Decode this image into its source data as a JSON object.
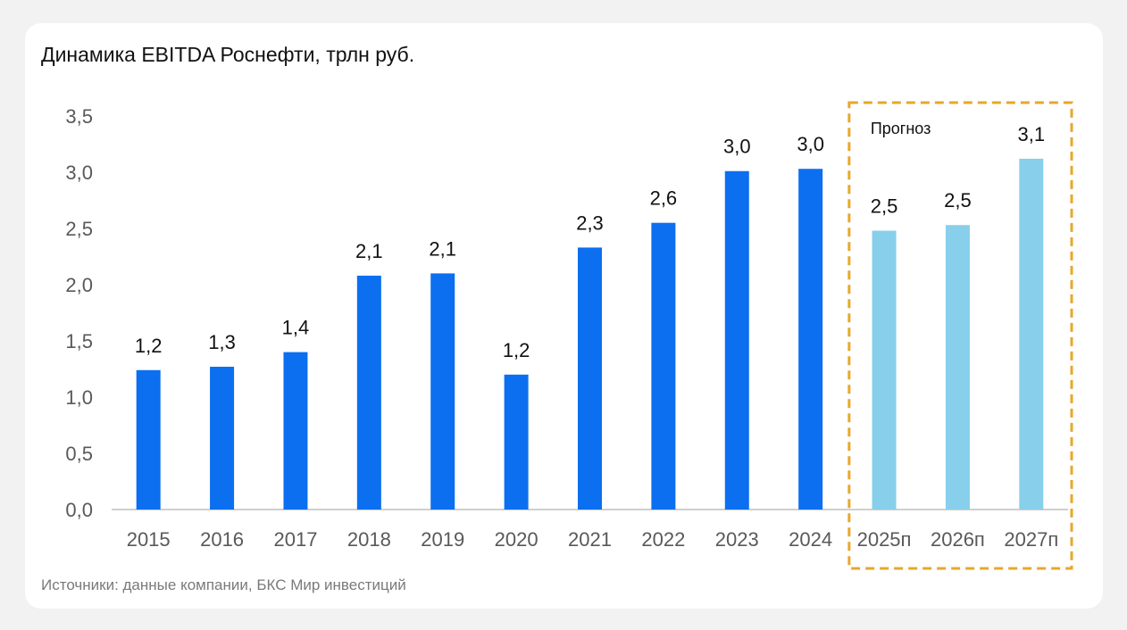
{
  "chart_data": {
    "type": "bar",
    "title": "Динамика EBITDA Роснефти, трлн руб.",
    "categories": [
      "2015",
      "2016",
      "2017",
      "2018",
      "2019",
      "2020",
      "2021",
      "2022",
      "2023",
      "2024",
      "2025п",
      "2026п",
      "2027п"
    ],
    "values": [
      1.24,
      1.27,
      1.4,
      2.08,
      2.1,
      1.2,
      2.33,
      2.55,
      3.01,
      3.03,
      2.48,
      2.53,
      3.12
    ],
    "data_labels": [
      "1,2",
      "1,3",
      "1,4",
      "2,1",
      "2,1",
      "1,2",
      "2,3",
      "2,6",
      "3,0",
      "3,0",
      "2,5",
      "2,5",
      "3,1"
    ],
    "forecast": [
      false,
      false,
      false,
      false,
      false,
      false,
      false,
      false,
      false,
      false,
      true,
      true,
      true
    ],
    "ylim": [
      0,
      3.5
    ],
    "yticks": [
      0,
      0.5,
      1.0,
      1.5,
      2.0,
      2.5,
      3.0,
      3.5
    ],
    "ytick_labels": [
      "0,0",
      "0,5",
      "1,0",
      "1,5",
      "2,0",
      "2,5",
      "3,0",
      "3,5"
    ],
    "xlabel": "",
    "ylabel": "",
    "grid": false,
    "colors": {
      "actual": "#0b6ff0",
      "forecast": "#88cfeb",
      "forecast_box": "#e8a72a",
      "axis": "#bfbfbf"
    },
    "forecast_box_label": "Прогноз"
  },
  "footer": {
    "source": "Источники: данные компании, БКС Мир инвестиций"
  }
}
